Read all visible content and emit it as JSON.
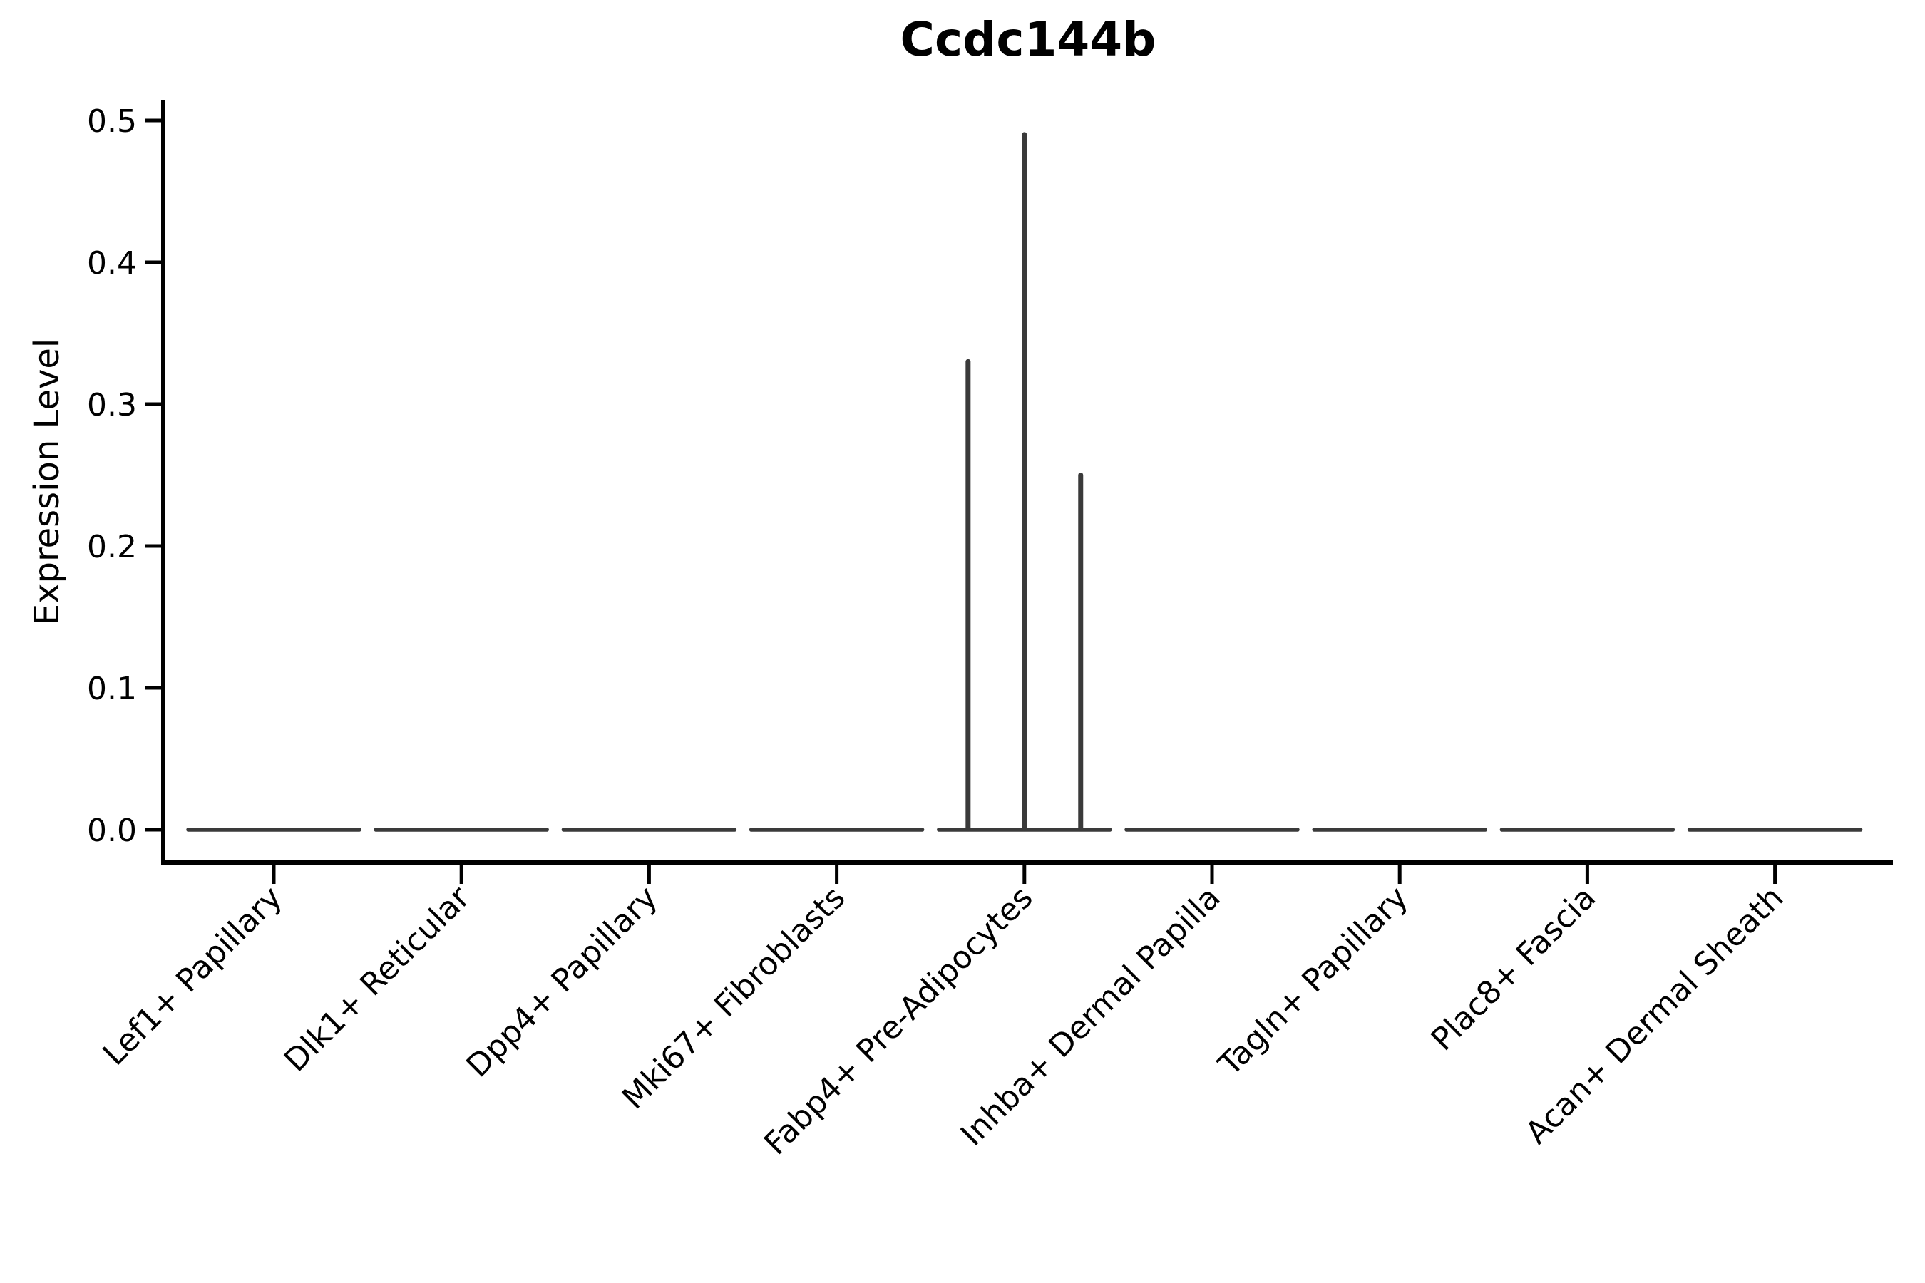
{
  "title": "Ccdc144b",
  "axes": {
    "y_label": "Expression Level"
  },
  "style": {
    "background": "#FFFFFF",
    "axis_color": "#000000",
    "text_color": "#000000",
    "violin_color": "#3A3A3A"
  },
  "chart_data": {
    "type": "violin",
    "title": "Ccdc144b",
    "xlabel": "",
    "ylabel": "Expression Level",
    "ylim": [
      0.0,
      0.5
    ],
    "yticks": [
      0.0,
      0.1,
      0.2,
      0.3,
      0.4,
      0.5
    ],
    "ytick_labels": [
      "0.0",
      "0.1",
      "0.2",
      "0.3",
      "0.4",
      "0.5"
    ],
    "xtick_rotation": 45,
    "grid": false,
    "legend": false,
    "categories": [
      "Lef1+ Papillary",
      "Dlk1+ Reticular",
      "Dpp4+ Papillary",
      "Mki67+ Fibroblasts",
      "Fabp4+ Pre-Adipocytes",
      "Inhba+ Dermal Papilla",
      "Tagln+ Papillary",
      "Plac8+ Fascia",
      "Acan+ Dermal Sheath"
    ],
    "violins": [
      {
        "category": "Lef1+ Papillary",
        "baseline": 0.0,
        "spikes": []
      },
      {
        "category": "Dlk1+ Reticular",
        "baseline": 0.0,
        "spikes": []
      },
      {
        "category": "Dpp4+ Papillary",
        "baseline": 0.0,
        "spikes": []
      },
      {
        "category": "Mki67+ Fibroblasts",
        "baseline": 0.0,
        "spikes": []
      },
      {
        "category": "Fabp4+ Pre-Adipocytes",
        "baseline": 0.0,
        "spikes": [
          {
            "offset_frac": -0.3,
            "peak": 0.33
          },
          {
            "offset_frac": 0.0,
            "peak": 0.49
          },
          {
            "offset_frac": 0.3,
            "peak": 0.25
          }
        ]
      },
      {
        "category": "Inhba+ Dermal Papilla",
        "baseline": 0.0,
        "spikes": []
      },
      {
        "category": "Tagln+ Papillary",
        "baseline": 0.0,
        "spikes": []
      },
      {
        "category": "Plac8+ Fascia",
        "baseline": 0.0,
        "spikes": []
      },
      {
        "category": "Acan+ Dermal Sheath",
        "baseline": 0.0,
        "spikes": []
      }
    ]
  }
}
